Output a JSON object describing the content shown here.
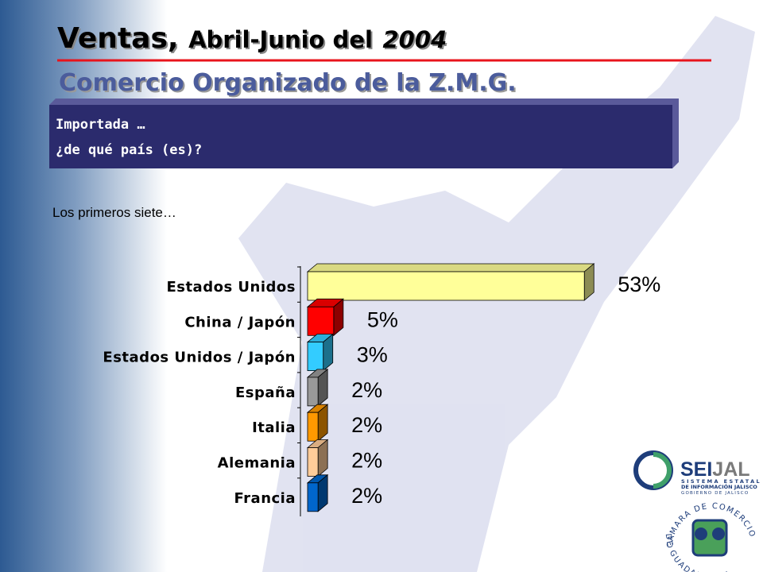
{
  "slide": {
    "title": {
      "main": "Ventas,",
      "rest": "Abril-Junio del",
      "year": "2004"
    },
    "subtitle": "Comercio Organizado de la Z.M.G.",
    "box": [
      "Importada …",
      "¿de qué país (es)?"
    ],
    "note": "Los primeros siete…",
    "seijal": {
      "a": "SEI",
      "b": "JAL",
      "lines": [
        "SISTEMA ESTATAL",
        "DE INFORMACIÓN JALISCO",
        "GOBIERNO DE JALISCO"
      ]
    },
    "camara": [
      "CAMARA DE COMERCIO",
      "DE GUADALAJARA"
    ]
  },
  "chart_data": {
    "type": "bar",
    "orientation": "horizontal",
    "categories": [
      "Estados Unidos",
      "China / Japón",
      "Estados Unidos / Japón",
      "España",
      "Italia",
      "Alemania",
      "Francia"
    ],
    "values": [
      53,
      5,
      3,
      2,
      2,
      2,
      2
    ],
    "value_labels": [
      "53%",
      "5%",
      "3%",
      "2%",
      "2%",
      "2%",
      "2%"
    ],
    "colors": [
      "#ffff99",
      "#ff0000",
      "#33ccff",
      "#999999",
      "#ff9900",
      "#ffcc99",
      "#0066cc"
    ]
  }
}
